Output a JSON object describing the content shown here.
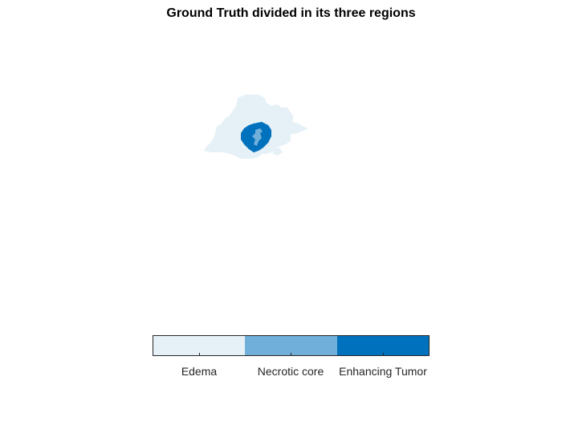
{
  "title": "Ground Truth divided in its three regions",
  "regions": [
    {
      "label": "Edema",
      "color": "#E6F1F7"
    },
    {
      "label": "Necrotic core",
      "color": "#70AFDA"
    },
    {
      "label": "Enhancing Tumor",
      "color": "#0072BD"
    }
  ]
}
